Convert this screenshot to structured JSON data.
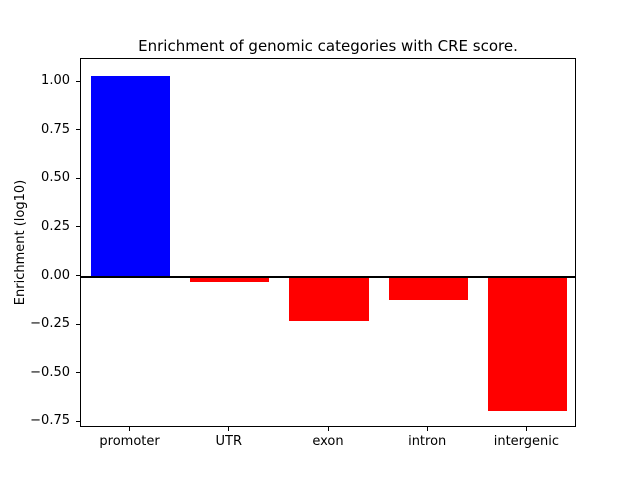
{
  "chart_data": {
    "type": "bar",
    "title": "Enrichment of genomic categories with CRE score.",
    "xlabel": "",
    "ylabel": "Enrichment (log10)",
    "categories": [
      "promoter",
      "UTR",
      "exon",
      "intron",
      "intergenic"
    ],
    "values": [
      1.03,
      -0.03,
      -0.23,
      -0.12,
      -0.69
    ],
    "bar_colors": [
      "#0000ff",
      "#ff0000",
      "#ff0000",
      "#ff0000",
      "#ff0000"
    ],
    "ylim": [
      -0.78,
      1.12
    ],
    "yticks": [
      -0.75,
      -0.5,
      -0.25,
      0.0,
      0.25,
      0.5,
      0.75,
      1.0
    ],
    "yticklabels": [
      "−0.75",
      "−0.50",
      "−0.25",
      "0.00",
      "0.25",
      "0.50",
      "0.75",
      "1.00"
    ],
    "grid": false,
    "zero_line": true,
    "legend": null,
    "background": "#ffffff",
    "spine_color": "#000000"
  }
}
